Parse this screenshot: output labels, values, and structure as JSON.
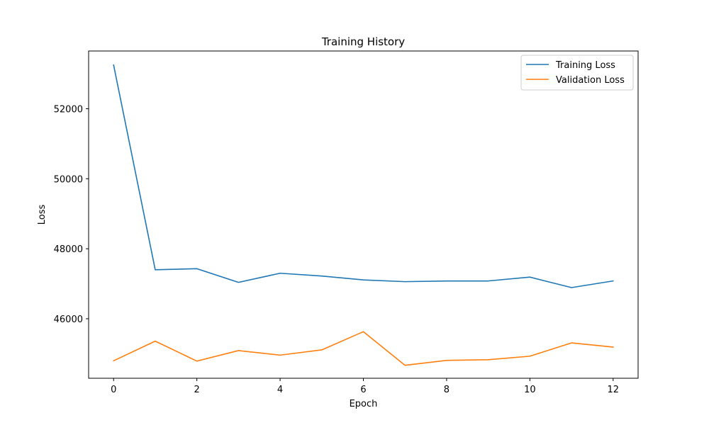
{
  "chart_data": {
    "type": "line",
    "title": "Training History",
    "xlabel": "Epoch",
    "ylabel": "Loss",
    "x": [
      0,
      1,
      2,
      3,
      4,
      5,
      6,
      7,
      8,
      9,
      10,
      11,
      12
    ],
    "xlim": [
      -0.6,
      12.6
    ],
    "ylim": [
      44300,
      53650
    ],
    "xticks": [
      0,
      2,
      4,
      6,
      8,
      10,
      12
    ],
    "yticks": [
      46000,
      48000,
      50000,
      52000
    ],
    "grid": false,
    "legend_position": "top-right",
    "series": [
      {
        "name": "Training Loss",
        "color": "#1f77b4",
        "values": [
          53250,
          47400,
          47430,
          47040,
          47300,
          47220,
          47110,
          47060,
          47080,
          47080,
          47190,
          46890,
          47080
        ]
      },
      {
        "name": "Validation Loss",
        "color": "#ff7f0e",
        "values": [
          44800,
          45360,
          44790,
          45090,
          44960,
          45110,
          45630,
          44670,
          44810,
          44830,
          44930,
          45310,
          45190
        ]
      }
    ]
  }
}
